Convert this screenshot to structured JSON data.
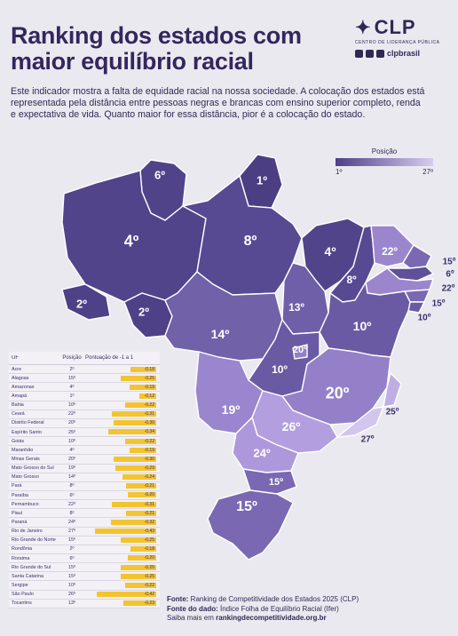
{
  "title": "Ranking dos estados com maior equilíbrio racial",
  "intro": "Este indicador mostra a falta de equidade racial na nossa sociedade. A colocação dos estados está representada pela distância entre pessoas negras e brancas com ensino superior completo, renda e expectativa de vida. Quanto maior for essa distância, pior é a colocação do estado.",
  "logo": {
    "name": "CLP",
    "subtitle": "CENTRO DE LIDERANÇA PÚBLICA",
    "handle": "clpbrasil"
  },
  "legend": {
    "title": "Posição",
    "min": "1º",
    "max": "27º"
  },
  "map_labels": {
    "RR": "6º",
    "AP": "1º",
    "AM": "4º",
    "PA": "8º",
    "MA": "4º",
    "CE": "22º",
    "RN": "15º",
    "PB": "6º",
    "PE": "22º",
    "AL": "15º",
    "SE": "10º",
    "AC": "2º",
    "RO": "2º",
    "TO": "13º",
    "PI": "8º",
    "BA": "10º",
    "MT": "14º",
    "DF": "20º",
    "GO": "10º",
    "MG": "20º",
    "ES": "25º",
    "MS": "19º",
    "SP": "26º",
    "RJ": "27º",
    "PR": "24º",
    "SC": "15º",
    "RS": "15º"
  },
  "table": {
    "headers": {
      "uf": "UF",
      "pos": "Posição",
      "score": "Pontuação de -1 a 1"
    },
    "rows": [
      {
        "uf": "Acre",
        "pos": "2º",
        "score": "-0.18",
        "v": -0.18
      },
      {
        "uf": "Alagoas",
        "pos": "15º",
        "score": "-0.25",
        "v": -0.25
      },
      {
        "uf": "Amazonas",
        "pos": "4º",
        "score": "-0.19",
        "v": -0.19
      },
      {
        "uf": "Amapá",
        "pos": "1º",
        "score": "-0.12",
        "v": -0.12
      },
      {
        "uf": "Bahia",
        "pos": "10º",
        "score": "-0.22",
        "v": -0.22
      },
      {
        "uf": "Ceará",
        "pos": "22º",
        "score": "-0.31",
        "v": -0.31
      },
      {
        "uf": "Distrito Federal",
        "pos": "20º",
        "score": "-0.30",
        "v": -0.3
      },
      {
        "uf": "Espírito Santo",
        "pos": "25º",
        "score": "-0.34",
        "v": -0.34
      },
      {
        "uf": "Goiás",
        "pos": "10º",
        "score": "-0.22",
        "v": -0.22
      },
      {
        "uf": "Maranhão",
        "pos": "4º",
        "score": "-0.19",
        "v": -0.19
      },
      {
        "uf": "Minas Gerais",
        "pos": "20º",
        "score": "-0.30",
        "v": -0.3
      },
      {
        "uf": "Mato Grosso do Sul",
        "pos": "19º",
        "score": "-0.29",
        "v": -0.29
      },
      {
        "uf": "Mato Grosso",
        "pos": "14º",
        "score": "-0.24",
        "v": -0.24
      },
      {
        "uf": "Pará",
        "pos": "8º",
        "score": "-0.21",
        "v": -0.21
      },
      {
        "uf": "Paraíba",
        "pos": "6º",
        "score": "-0.20",
        "v": -0.2
      },
      {
        "uf": "Pernambuco",
        "pos": "22º",
        "score": "-0.31",
        "v": -0.31
      },
      {
        "uf": "Piauí",
        "pos": "8º",
        "score": "-0.21",
        "v": -0.21
      },
      {
        "uf": "Paraná",
        "pos": "24º",
        "score": "-0.32",
        "v": -0.32
      },
      {
        "uf": "Rio de Janeiro",
        "pos": "27º",
        "score": "-0.43",
        "v": -0.43
      },
      {
        "uf": "Rio Grande do Norte",
        "pos": "15º",
        "score": "-0.25",
        "v": -0.25
      },
      {
        "uf": "Rondônia",
        "pos": "2º",
        "score": "-0.18",
        "v": -0.18
      },
      {
        "uf": "Roraima",
        "pos": "6º",
        "score": "-0.20",
        "v": -0.2
      },
      {
        "uf": "Rio Grande do Sul",
        "pos": "15º",
        "score": "-0.25",
        "v": -0.25
      },
      {
        "uf": "Santa Catarina",
        "pos": "15º",
        "score": "-0.25",
        "v": -0.25
      },
      {
        "uf": "Sergipe",
        "pos": "10º",
        "score": "-0.22",
        "v": -0.22
      },
      {
        "uf": "São Paulo",
        "pos": "26º",
        "score": "-0.42",
        "v": -0.42
      },
      {
        "uf": "Tocantins",
        "pos": "13º",
        "score": "-0.23",
        "v": -0.23
      }
    ]
  },
  "footer": {
    "fonte_label": "Fonte:",
    "fonte": "Ranking de Competitividade dos Estados 2025 (CLP)",
    "dado_label": "Fonte do dado:",
    "dado": "Índice Folha de Equilíbrio Racial (Ifer)",
    "mais_label": "Saiba mais em",
    "mais": "rankingdecompetitividade.org.br"
  },
  "colors": {
    "dark": "#4d3f86",
    "light": "#d8cdef",
    "bar": "#f3c431"
  }
}
